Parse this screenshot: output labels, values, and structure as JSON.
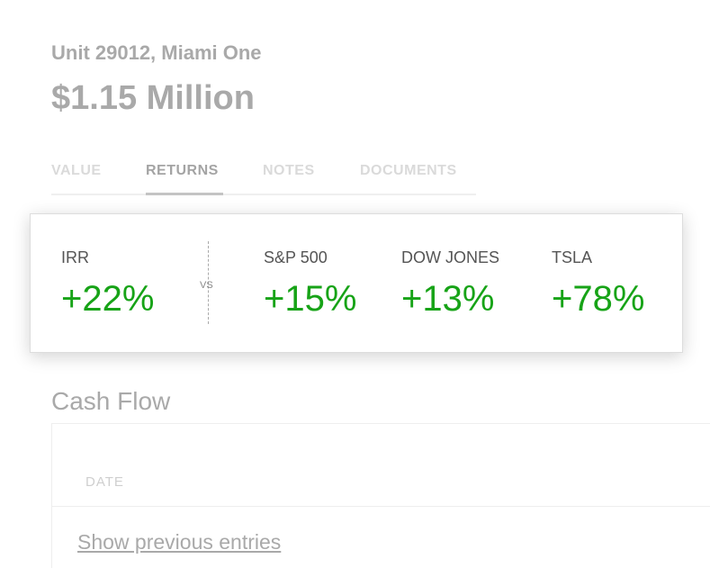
{
  "header": {
    "subtitle": "Unit 29012, Miami One",
    "title": "$1.15 Million"
  },
  "tabs": [
    "VALUE",
    "RETURNS",
    "NOTES",
    "DOCUMENTS"
  ],
  "returns_card": {
    "primary": {
      "label": "IRR",
      "value": "+22%"
    },
    "separator": "VS",
    "benchmarks": [
      {
        "label": "S&P 500",
        "value": "+15%"
      },
      {
        "label": "DOW JONES",
        "value": "+13%"
      },
      {
        "label": "TSLA",
        "value": "+78%"
      }
    ]
  },
  "cash_flow": {
    "title": "Cash Flow",
    "column": "DATE",
    "link": "Show previous entries"
  }
}
